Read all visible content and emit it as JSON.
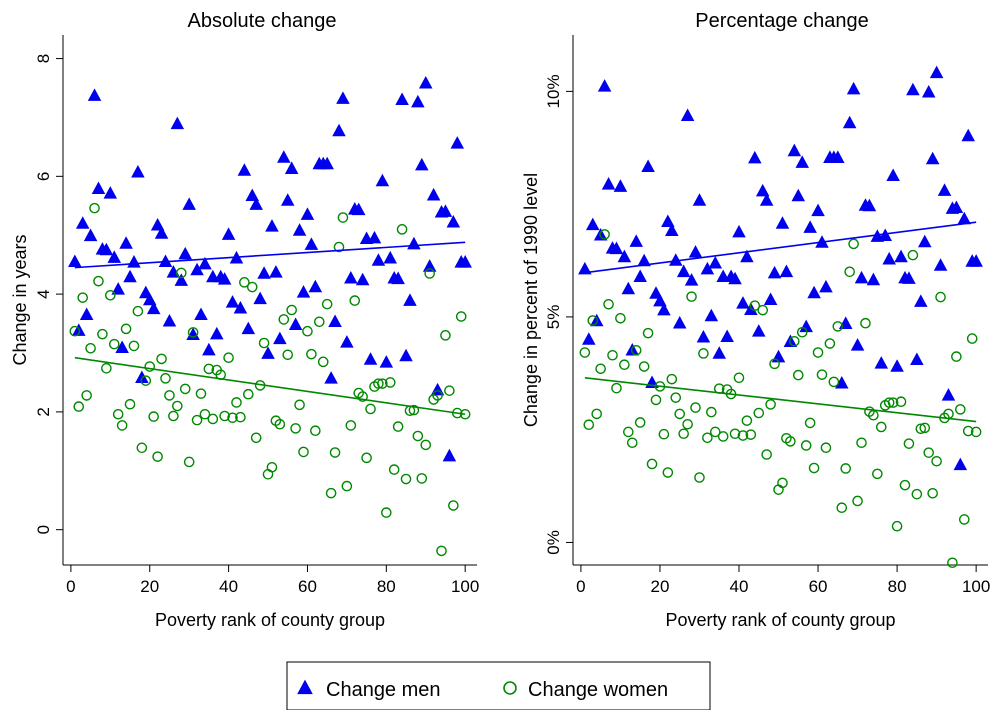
{
  "colors": {
    "men": "#0000ee",
    "women": "#008800",
    "axis": "#000000"
  },
  "legend": {
    "items": [
      {
        "label": "Change men",
        "marker": "filled-triangle"
      },
      {
        "label": "Change women",
        "marker": "hollow-circle"
      }
    ]
  },
  "chart_data": [
    {
      "type": "scatter",
      "title": "Absolute change",
      "xlabel": "Poverty rank of county group",
      "ylabel": "Change in years",
      "xlim": [
        -2,
        103
      ],
      "ylim": [
        -0.6,
        8.4
      ],
      "xticks": [
        0,
        20,
        40,
        60,
        80,
        100
      ],
      "yticks": [
        0,
        2,
        4,
        6,
        8
      ],
      "ytick_labels": [
        "0",
        "2",
        "4",
        "6",
        "8"
      ],
      "grid": false,
      "series": [
        {
          "name": "Change men",
          "marker": "filled-triangle",
          "x": [
            1,
            2,
            3,
            4,
            5,
            6,
            7,
            8,
            9,
            10,
            11,
            12,
            13,
            14,
            15,
            16,
            17,
            18,
            19,
            20,
            21,
            22,
            23,
            24,
            25,
            26,
            27,
            28,
            29,
            30,
            31,
            32,
            33,
            34,
            35,
            36,
            37,
            38,
            39,
            40,
            41,
            42,
            43,
            44,
            45,
            46,
            47,
            48,
            49,
            50,
            51,
            52,
            53,
            54,
            55,
            56,
            57,
            58,
            59,
            60,
            61,
            62,
            63,
            64,
            65,
            66,
            67,
            68,
            69,
            70,
            71,
            72,
            73,
            74,
            75,
            76,
            77,
            78,
            79,
            80,
            81,
            82,
            83,
            84,
            85,
            86,
            87,
            88,
            89,
            90,
            91,
            92,
            93,
            94,
            95,
            96,
            97,
            98,
            99,
            100
          ],
          "y": [
            4.55,
            3.38,
            5.2,
            3.65,
            4.99,
            7.37,
            5.79,
            4.76,
            4.75,
            5.71,
            4.62,
            4.08,
            3.09,
            4.86,
            4.29,
            4.54,
            6.07,
            2.58,
            4.02,
            3.9,
            3.75,
            5.17,
            5.03,
            4.55,
            3.54,
            4.37,
            6.89,
            4.23,
            4.68,
            5.52,
            3.31,
            4.41,
            3.65,
            4.51,
            3.05,
            4.29,
            3.32,
            4.29,
            4.25,
            5.01,
            3.86,
            4.61,
            3.76,
            6.1,
            3.41,
            5.67,
            5.52,
            3.92,
            4.35,
            2.99,
            5.15,
            4.37,
            3.24,
            6.32,
            5.59,
            6.13,
            3.48,
            5.08,
            4.03,
            5.35,
            4.84,
            4.12,
            6.21,
            6.21,
            6.21,
            2.57,
            3.53,
            6.77,
            7.32,
            3.18,
            4.27,
            5.44,
            5.43,
            4.24,
            4.94,
            2.89,
            4.95,
            4.57,
            5.92,
            2.84,
            4.61,
            4.27,
            4.26,
            7.3,
            2.95,
            3.89,
            4.85,
            7.26,
            6.19,
            7.58,
            4.47,
            5.68,
            2.37,
            5.39,
            5.4,
            1.25,
            5.22,
            6.56,
            4.54,
            4.54
          ]
        },
        {
          "name": "Change women",
          "marker": "hollow-circle",
          "x": [
            1,
            2,
            3,
            4,
            5,
            6,
            7,
            8,
            9,
            10,
            11,
            12,
            13,
            14,
            15,
            16,
            17,
            18,
            19,
            20,
            21,
            22,
            23,
            24,
            25,
            26,
            27,
            28,
            29,
            30,
            31,
            32,
            33,
            34,
            35,
            36,
            37,
            38,
            39,
            40,
            41,
            42,
            43,
            44,
            45,
            46,
            47,
            48,
            49,
            50,
            51,
            52,
            53,
            54,
            55,
            56,
            57,
            58,
            59,
            60,
            61,
            62,
            63,
            64,
            65,
            66,
            67,
            68,
            69,
            70,
            71,
            72,
            73,
            74,
            75,
            76,
            77,
            78,
            79,
            80,
            81,
            82,
            83,
            84,
            85,
            86,
            87,
            88,
            89,
            90,
            91,
            92,
            93,
            94,
            95,
            96,
            97,
            98,
            99,
            100
          ],
          "y": [
            3.37,
            2.09,
            3.94,
            2.28,
            3.08,
            5.46,
            4.22,
            3.32,
            2.74,
            3.98,
            3.15,
            1.96,
            1.77,
            3.41,
            2.13,
            3.12,
            3.71,
            1.39,
            2.53,
            2.77,
            1.92,
            1.24,
            2.9,
            2.57,
            2.28,
            1.93,
            2.1,
            4.36,
            2.39,
            1.15,
            3.35,
            1.86,
            2.31,
            1.96,
            2.73,
            1.88,
            2.71,
            2.63,
            1.93,
            2.92,
            1.9,
            2.16,
            1.91,
            4.2,
            2.3,
            4.12,
            1.56,
            2.45,
            3.17,
            0.94,
            1.06,
            1.85,
            1.79,
            3.57,
            2.97,
            3.73,
            1.72,
            2.12,
            1.32,
            3.37,
            2.98,
            1.68,
            3.53,
            2.85,
            3.83,
            0.62,
            1.31,
            4.8,
            5.3,
            0.74,
            1.77,
            3.89,
            2.32,
            2.26,
            1.22,
            2.05,
            2.43,
            2.48,
            2.48,
            0.29,
            2.5,
            1.02,
            1.75,
            5.1,
            0.86,
            2.02,
            2.03,
            1.59,
            0.87,
            1.44,
            4.35,
            2.21,
            2.28,
            -0.36,
            3.3,
            2.36,
            0.41,
            1.98,
            3.62,
            1.96
          ]
        }
      ],
      "fit_lines": [
        {
          "series": "Change men",
          "x": [
            1,
            100
          ],
          "y": [
            4.45,
            4.88
          ]
        },
        {
          "series": "Change women",
          "x": [
            1,
            100
          ],
          "y": [
            2.92,
            1.96
          ]
        }
      ]
    },
    {
      "type": "scatter",
      "title": "Percentage change",
      "xlabel": "Poverty rank of county group",
      "ylabel": "Change in percent of 1990 level",
      "xlim": [
        -2,
        103
      ],
      "ylim": [
        -0.005,
        0.1125
      ],
      "xticks": [
        0,
        20,
        40,
        60,
        80,
        100
      ],
      "yticks": [
        0,
        0.05,
        0.1
      ],
      "ytick_labels": [
        "0%",
        "5%",
        "10%"
      ],
      "grid": false,
      "series": [
        {
          "name": "Change men",
          "marker": "filled-triangle",
          "x": [
            1,
            2,
            3,
            4,
            5,
            6,
            7,
            8,
            9,
            10,
            11,
            12,
            13,
            14,
            15,
            16,
            17,
            18,
            19,
            20,
            21,
            22,
            23,
            24,
            25,
            26,
            27,
            28,
            29,
            30,
            31,
            32,
            33,
            34,
            35,
            36,
            37,
            38,
            39,
            40,
            41,
            42,
            43,
            44,
            45,
            46,
            47,
            48,
            49,
            50,
            51,
            52,
            53,
            54,
            55,
            56,
            57,
            58,
            59,
            60,
            61,
            62,
            63,
            64,
            65,
            66,
            67,
            68,
            69,
            70,
            71,
            72,
            73,
            74,
            75,
            76,
            77,
            78,
            79,
            80,
            81,
            82,
            83,
            84,
            85,
            86,
            87,
            88,
            89,
            90,
            91,
            92,
            93,
            94,
            95,
            96,
            97,
            98,
            99,
            100
          ],
          "y": [
            0.0606,
            0.045,
            0.0704,
            0.0491,
            0.0681,
            0.1011,
            0.0794,
            0.0652,
            0.0651,
            0.0789,
            0.0633,
            0.0562,
            0.0426,
            0.0667,
            0.0589,
            0.0624,
            0.0833,
            0.0354,
            0.0552,
            0.0535,
            0.0515,
            0.0711,
            0.0691,
            0.0625,
            0.0486,
            0.06,
            0.0946,
            0.0581,
            0.0643,
            0.0758,
            0.0455,
            0.0606,
            0.0502,
            0.0619,
            0.0419,
            0.0589,
            0.0456,
            0.0589,
            0.0584,
            0.0688,
            0.053,
            0.0633,
            0.0516,
            0.0852,
            0.0468,
            0.0779,
            0.0758,
            0.0538,
            0.0597,
            0.0411,
            0.0707,
            0.06,
            0.0445,
            0.0868,
            0.0768,
            0.0842,
            0.0478,
            0.0698,
            0.0553,
            0.0735,
            0.0665,
            0.0566,
            0.0853,
            0.0853,
            0.0853,
            0.0353,
            0.0485,
            0.093,
            0.1005,
            0.0437,
            0.0586,
            0.0747,
            0.0746,
            0.0582,
            0.0678,
            0.0397,
            0.068,
            0.0628,
            0.0813,
            0.039,
            0.0633,
            0.0586,
            0.0585,
            0.1003,
            0.0405,
            0.0534,
            0.0666,
            0.0998,
            0.085,
            0.1041,
            0.0614,
            0.078,
            0.0326,
            0.074,
            0.0742,
            0.0172,
            0.0717,
            0.0901,
            0.0623,
            0.0623
          ]
        },
        {
          "name": "Change women",
          "marker": "hollow-circle",
          "x": [
            1,
            2,
            3,
            4,
            5,
            6,
            7,
            8,
            9,
            10,
            11,
            12,
            13,
            14,
            15,
            16,
            17,
            18,
            19,
            20,
            21,
            22,
            23,
            24,
            25,
            26,
            27,
            28,
            29,
            30,
            31,
            32,
            33,
            34,
            35,
            36,
            37,
            38,
            39,
            40,
            41,
            42,
            43,
            44,
            45,
            46,
            47,
            48,
            49,
            50,
            51,
            52,
            53,
            54,
            55,
            56,
            57,
            58,
            59,
            60,
            61,
            62,
            63,
            64,
            65,
            66,
            67,
            68,
            69,
            70,
            71,
            72,
            73,
            74,
            75,
            76,
            77,
            78,
            79,
            80,
            81,
            82,
            83,
            84,
            85,
            86,
            87,
            88,
            89,
            90,
            91,
            92,
            93,
            94,
            95,
            96,
            97,
            98,
            99,
            100
          ],
          "y": [
            0.0421,
            0.0261,
            0.0492,
            0.0285,
            0.0385,
            0.0683,
            0.0528,
            0.0415,
            0.0342,
            0.0497,
            0.0394,
            0.0245,
            0.0221,
            0.0426,
            0.0266,
            0.039,
            0.0464,
            0.0174,
            0.0316,
            0.0346,
            0.024,
            0.0155,
            0.0362,
            0.0321,
            0.0285,
            0.0241,
            0.0262,
            0.0545,
            0.0299,
            0.0144,
            0.0419,
            0.0232,
            0.0289,
            0.0245,
            0.0341,
            0.0235,
            0.0339,
            0.0329,
            0.0241,
            0.0365,
            0.0237,
            0.027,
            0.0239,
            0.0525,
            0.0287,
            0.0515,
            0.0195,
            0.0306,
            0.0396,
            0.0117,
            0.0132,
            0.0231,
            0.0224,
            0.0446,
            0.0371,
            0.0466,
            0.0215,
            0.0265,
            0.0165,
            0.0421,
            0.0372,
            0.021,
            0.0441,
            0.0356,
            0.0479,
            0.0077,
            0.0164,
            0.06,
            0.0662,
            0.0092,
            0.0221,
            0.0486,
            0.029,
            0.0282,
            0.0152,
            0.0256,
            0.0304,
            0.031,
            0.031,
            0.0036,
            0.0312,
            0.0127,
            0.0219,
            0.0637,
            0.0107,
            0.0252,
            0.0254,
            0.0199,
            0.0109,
            0.018,
            0.0544,
            0.0276,
            0.0285,
            -0.0045,
            0.0412,
            0.0295,
            0.0051,
            0.0247,
            0.0452,
            0.0245
          ]
        }
      ],
      "fit_lines": [
        {
          "series": "Change men",
          "x": [
            1,
            100
          ],
          "y": [
            0.0598,
            0.071
          ]
        },
        {
          "series": "Change women",
          "x": [
            1,
            100
          ],
          "y": [
            0.0365,
            0.0268
          ]
        }
      ]
    }
  ]
}
